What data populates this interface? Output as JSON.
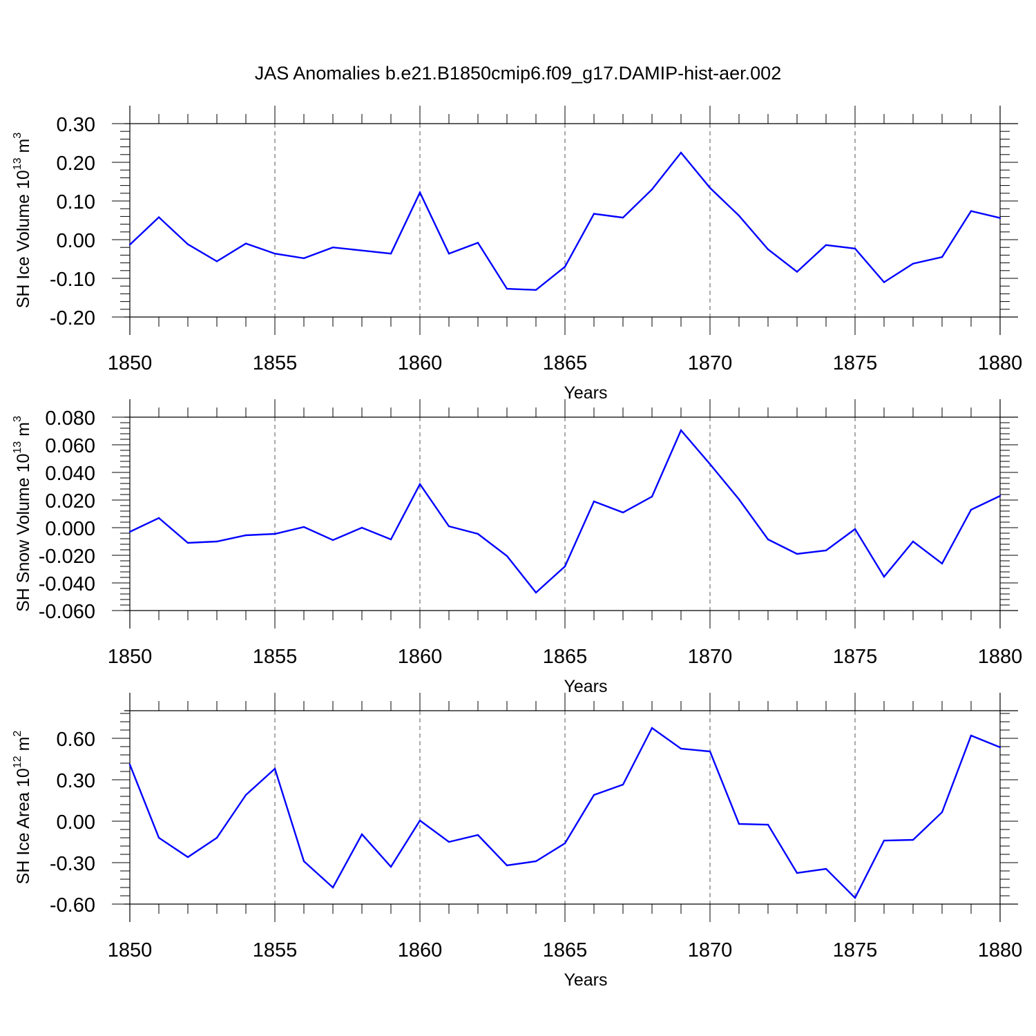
{
  "figure_title": "JAS Anomalies b.e21.B1850cmip6.f09_g17.DAMIP-hist-aer.002",
  "colors": {
    "line": "#0000ff",
    "axis": "#000000",
    "grid": "#555555"
  },
  "chart_data": [
    {
      "type": "line",
      "title": "",
      "xlabel": "Years",
      "ylabel": "SH Ice Volume 10",
      "ylabel_exponent": "13",
      "ylabel_unit": " m",
      "ylabel_unit_exponent": "3",
      "xlim": [
        1850,
        1880
      ],
      "ylim": [
        -0.2,
        0.3
      ],
      "grid": "dashed vertical at major x ticks",
      "x_ticks": [
        1850,
        1855,
        1860,
        1865,
        1870,
        1875,
        1880
      ],
      "x_tick_labels": [
        "1850",
        "1855",
        "1860",
        "1865",
        "1870",
        "1875",
        "1880"
      ],
      "y_ticks": [
        -0.2,
        -0.1,
        0.0,
        0.1,
        0.2,
        0.3
      ],
      "y_tick_labels": [
        "-0.20",
        "-0.10",
        "0.00",
        "0.10",
        "0.20",
        "0.30"
      ],
      "x": [
        1850,
        1851,
        1852,
        1853,
        1854,
        1855,
        1856,
        1857,
        1858,
        1859,
        1860,
        1861,
        1862,
        1863,
        1864,
        1865,
        1866,
        1867,
        1868,
        1869,
        1870,
        1871,
        1872,
        1873,
        1874,
        1875,
        1876,
        1877,
        1878,
        1879,
        1880
      ],
      "series": [
        {
          "name": "SH Ice Volume",
          "values": [
            -0.013,
            0.058,
            -0.012,
            -0.056,
            -0.01,
            -0.036,
            -0.048,
            -0.02,
            -0.028,
            -0.036,
            0.122,
            -0.036,
            -0.008,
            -0.127,
            -0.13,
            -0.07,
            0.067,
            0.057,
            0.13,
            0.225,
            0.134,
            0.062,
            -0.025,
            -0.083,
            -0.014,
            -0.023,
            -0.11,
            -0.062,
            -0.045,
            0.074,
            0.056
          ]
        }
      ]
    },
    {
      "type": "line",
      "title": "",
      "xlabel": "Years",
      "ylabel": "SH Snow Volume 10",
      "ylabel_exponent": "13",
      "ylabel_unit": " m",
      "ylabel_unit_exponent": "3",
      "xlim": [
        1850,
        1880
      ],
      "ylim": [
        -0.06,
        0.08
      ],
      "grid": "dashed vertical at major x ticks",
      "x_ticks": [
        1850,
        1855,
        1860,
        1865,
        1870,
        1875,
        1880
      ],
      "x_tick_labels": [
        "1850",
        "1855",
        "1860",
        "1865",
        "1870",
        "1875",
        "1880"
      ],
      "y_ticks": [
        -0.06,
        -0.04,
        -0.02,
        0.0,
        0.02,
        0.04,
        0.06,
        0.08
      ],
      "y_tick_labels": [
        "-0.060",
        "-0.040",
        "-0.020",
        "0.000",
        "0.020",
        "0.040",
        "0.060",
        "0.080"
      ],
      "x": [
        1850,
        1851,
        1852,
        1853,
        1854,
        1855,
        1856,
        1857,
        1858,
        1859,
        1860,
        1861,
        1862,
        1863,
        1864,
        1865,
        1866,
        1867,
        1868,
        1869,
        1870,
        1871,
        1872,
        1873,
        1874,
        1875,
        1876,
        1877,
        1878,
        1879,
        1880
      ],
      "series": [
        {
          "name": "SH Snow Volume",
          "values": [
            -0.003,
            0.007,
            -0.011,
            -0.01,
            -0.0055,
            -0.0045,
            0.0005,
            -0.009,
            0.0,
            -0.0085,
            0.0315,
            0.001,
            -0.0045,
            -0.0205,
            -0.047,
            -0.028,
            0.019,
            0.011,
            0.0225,
            0.0705,
            0.046,
            0.0205,
            -0.0085,
            -0.019,
            -0.0165,
            -0.001,
            -0.0355,
            -0.01,
            -0.026,
            0.013,
            0.023
          ]
        }
      ]
    },
    {
      "type": "line",
      "title": "",
      "xlabel": "Years",
      "ylabel": "SH Ice Area 10",
      "ylabel_exponent": "12",
      "ylabel_unit": " m",
      "ylabel_unit_exponent": "2",
      "xlim": [
        1850,
        1880
      ],
      "ylim": [
        -0.6,
        0.8
      ],
      "grid": "dashed vertical at major x ticks",
      "x_ticks": [
        1850,
        1855,
        1860,
        1865,
        1870,
        1875,
        1880
      ],
      "x_tick_labels": [
        "1850",
        "1855",
        "1860",
        "1865",
        "1870",
        "1875",
        "1880"
      ],
      "y_ticks": [
        -0.6,
        -0.3,
        0.0,
        0.3,
        0.6
      ],
      "y_tick_labels": [
        "-0.60",
        "-0.30",
        "0.00",
        "0.30",
        "0.60"
      ],
      "x": [
        1850,
        1851,
        1852,
        1853,
        1854,
        1855,
        1856,
        1857,
        1858,
        1859,
        1860,
        1861,
        1862,
        1863,
        1864,
        1865,
        1866,
        1867,
        1868,
        1869,
        1870,
        1871,
        1872,
        1873,
        1874,
        1875,
        1876,
        1877,
        1878,
        1879,
        1880
      ],
      "series": [
        {
          "name": "SH Ice Area",
          "values": [
            0.41,
            -0.12,
            -0.26,
            -0.12,
            0.19,
            0.38,
            -0.29,
            -0.48,
            -0.095,
            -0.33,
            0.005,
            -0.15,
            -0.1,
            -0.32,
            -0.29,
            -0.16,
            0.19,
            0.265,
            0.675,
            0.525,
            0.505,
            -0.02,
            -0.025,
            -0.375,
            -0.345,
            -0.555,
            -0.14,
            -0.135,
            0.065,
            0.62,
            0.535
          ]
        }
      ]
    }
  ]
}
